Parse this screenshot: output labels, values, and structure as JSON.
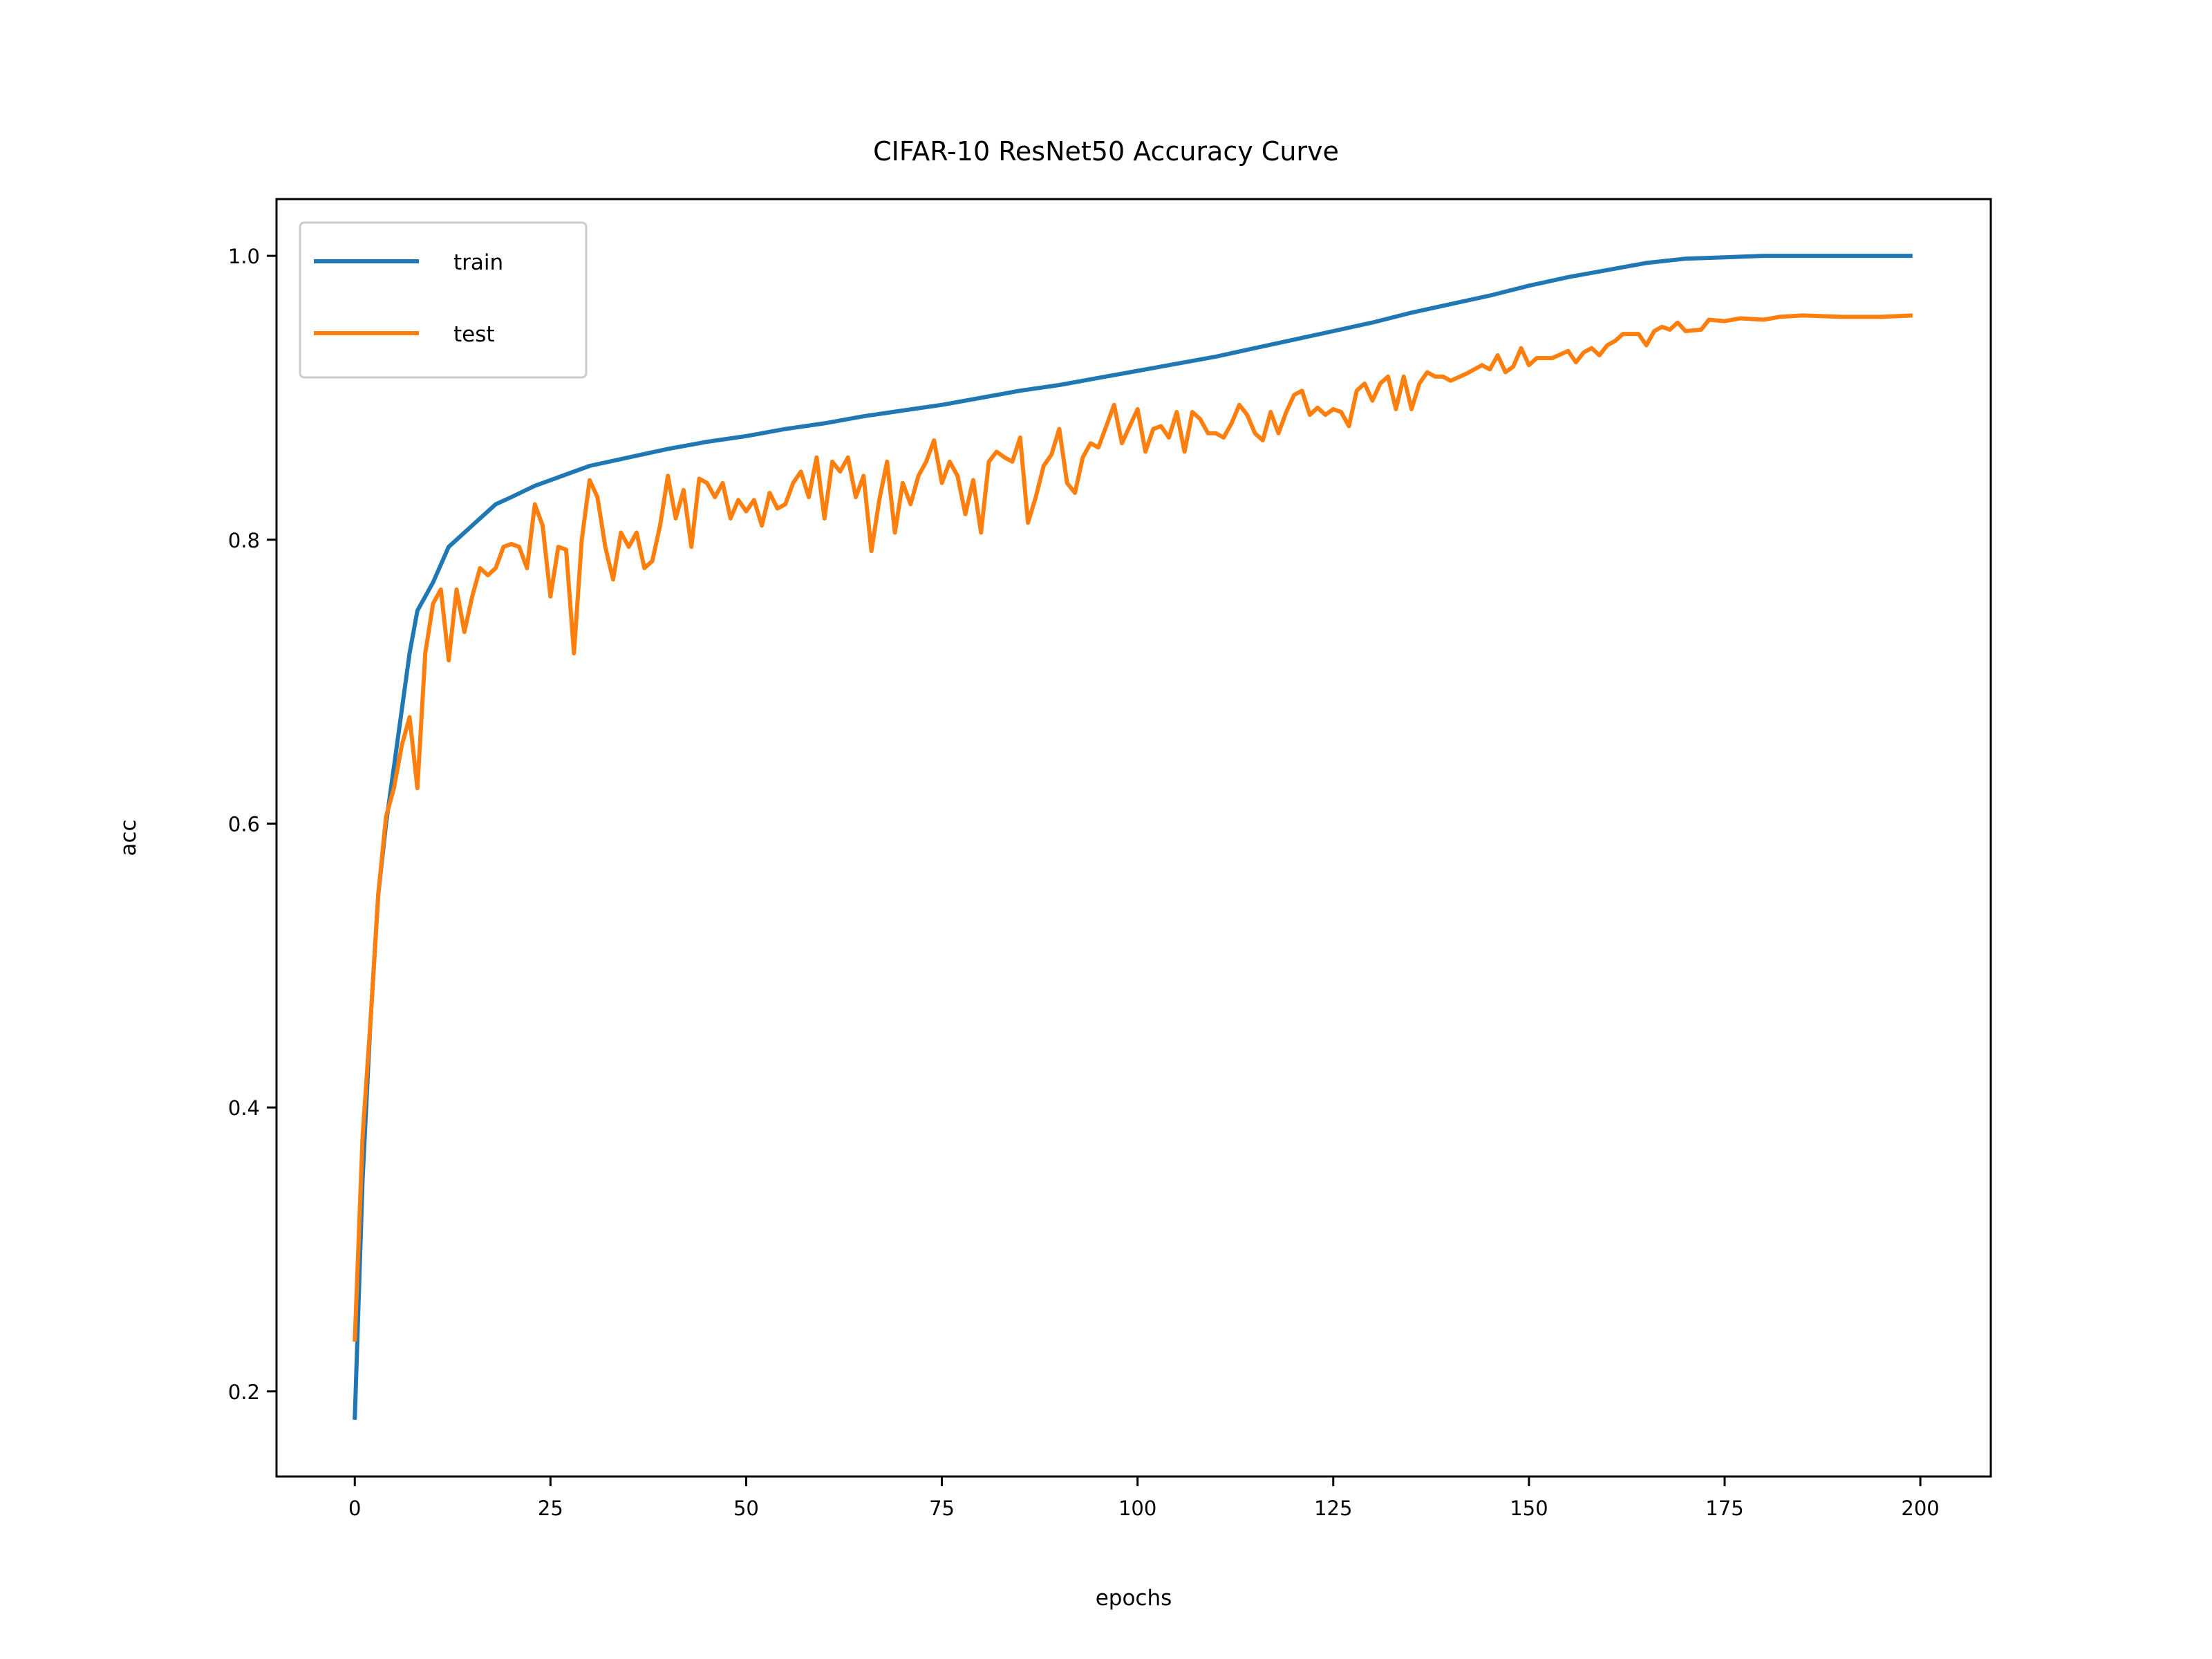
{
  "chart_data": {
    "type": "line",
    "title": "CIFAR-10 ResNet50 Accuracy Curve",
    "xlabel": "epochs",
    "ylabel": "acc",
    "xlim": [
      -10,
      209
    ],
    "ylim": [
      0.14,
      1.04
    ],
    "xticks": [
      0,
      25,
      50,
      75,
      100,
      125,
      150,
      175,
      200
    ],
    "yticks": [
      0.2,
      0.4,
      0.6,
      0.8,
      1.0
    ],
    "xtick_labels": [
      "0",
      "25",
      "50",
      "75",
      "100",
      "125",
      "150",
      "175",
      "200"
    ],
    "ytick_labels": [
      "0.2",
      "0.4",
      "0.6",
      "0.8",
      "1.0"
    ],
    "grid": false,
    "legend_position": "upper-left",
    "series": [
      {
        "name": "train",
        "color": "#1f77b4",
        "points": [
          [
            0,
            0.18
          ],
          [
            1,
            0.35
          ],
          [
            2,
            0.46
          ],
          [
            3,
            0.55
          ],
          [
            4,
            0.6
          ],
          [
            5,
            0.64
          ],
          [
            6,
            0.68
          ],
          [
            7,
            0.72
          ],
          [
            8,
            0.75
          ],
          [
            10,
            0.77
          ],
          [
            12,
            0.795
          ],
          [
            14,
            0.805
          ],
          [
            16,
            0.815
          ],
          [
            18,
            0.825
          ],
          [
            20,
            0.83
          ],
          [
            23,
            0.838
          ],
          [
            26,
            0.844
          ],
          [
            30,
            0.852
          ],
          [
            35,
            0.858
          ],
          [
            40,
            0.864
          ],
          [
            45,
            0.869
          ],
          [
            50,
            0.873
          ],
          [
            55,
            0.878
          ],
          [
            60,
            0.882
          ],
          [
            65,
            0.887
          ],
          [
            70,
            0.891
          ],
          [
            75,
            0.895
          ],
          [
            80,
            0.9
          ],
          [
            85,
            0.905
          ],
          [
            90,
            0.909
          ],
          [
            95,
            0.914
          ],
          [
            100,
            0.919
          ],
          [
            105,
            0.924
          ],
          [
            110,
            0.929
          ],
          [
            115,
            0.935
          ],
          [
            120,
            0.941
          ],
          [
            125,
            0.947
          ],
          [
            130,
            0.953
          ],
          [
            135,
            0.96
          ],
          [
            140,
            0.966
          ],
          [
            145,
            0.972
          ],
          [
            150,
            0.979
          ],
          [
            155,
            0.985
          ],
          [
            160,
            0.99
          ],
          [
            165,
            0.995
          ],
          [
            170,
            0.998
          ],
          [
            175,
            0.999
          ],
          [
            180,
            1.0
          ],
          [
            190,
            1.0
          ],
          [
            199,
            1.0
          ]
        ]
      },
      {
        "name": "test",
        "color": "#ff7f0e",
        "points": [
          [
            0,
            0.235
          ],
          [
            1,
            0.38
          ],
          [
            2,
            0.46
          ],
          [
            3,
            0.55
          ],
          [
            4,
            0.605
          ],
          [
            5,
            0.625
          ],
          [
            6,
            0.655
          ],
          [
            7,
            0.675
          ],
          [
            8,
            0.625
          ],
          [
            9,
            0.72
          ],
          [
            10,
            0.755
          ],
          [
            11,
            0.765
          ],
          [
            12,
            0.715
          ],
          [
            13,
            0.765
          ],
          [
            14,
            0.735
          ],
          [
            15,
            0.76
          ],
          [
            16,
            0.78
          ],
          [
            17,
            0.775
          ],
          [
            18,
            0.78
          ],
          [
            19,
            0.795
          ],
          [
            20,
            0.797
          ],
          [
            21,
            0.795
          ],
          [
            22,
            0.78
          ],
          [
            23,
            0.825
          ],
          [
            24,
            0.81
          ],
          [
            25,
            0.76
          ],
          [
            26,
            0.795
          ],
          [
            27,
            0.793
          ],
          [
            28,
            0.72
          ],
          [
            29,
            0.8
          ],
          [
            30,
            0.842
          ],
          [
            31,
            0.83
          ],
          [
            32,
            0.795
          ],
          [
            33,
            0.772
          ],
          [
            34,
            0.805
          ],
          [
            35,
            0.795
          ],
          [
            36,
            0.805
          ],
          [
            37,
            0.78
          ],
          [
            38,
            0.785
          ],
          [
            39,
            0.81
          ],
          [
            40,
            0.845
          ],
          [
            41,
            0.815
          ],
          [
            42,
            0.835
          ],
          [
            43,
            0.795
          ],
          [
            44,
            0.843
          ],
          [
            45,
            0.84
          ],
          [
            46,
            0.83
          ],
          [
            47,
            0.84
          ],
          [
            48,
            0.815
          ],
          [
            49,
            0.828
          ],
          [
            50,
            0.82
          ],
          [
            51,
            0.828
          ],
          [
            52,
            0.81
          ],
          [
            53,
            0.833
          ],
          [
            54,
            0.822
          ],
          [
            55,
            0.825
          ],
          [
            56,
            0.84
          ],
          [
            57,
            0.848
          ],
          [
            58,
            0.83
          ],
          [
            59,
            0.858
          ],
          [
            60,
            0.815
          ],
          [
            61,
            0.855
          ],
          [
            62,
            0.848
          ],
          [
            63,
            0.858
          ],
          [
            64,
            0.83
          ],
          [
            65,
            0.845
          ],
          [
            66,
            0.792
          ],
          [
            67,
            0.828
          ],
          [
            68,
            0.855
          ],
          [
            69,
            0.805
          ],
          [
            70,
            0.84
          ],
          [
            71,
            0.825
          ],
          [
            72,
            0.845
          ],
          [
            73,
            0.855
          ],
          [
            74,
            0.87
          ],
          [
            75,
            0.84
          ],
          [
            76,
            0.855
          ],
          [
            77,
            0.845
          ],
          [
            78,
            0.818
          ],
          [
            79,
            0.842
          ],
          [
            80,
            0.805
          ],
          [
            81,
            0.855
          ],
          [
            82,
            0.862
          ],
          [
            83,
            0.858
          ],
          [
            84,
            0.855
          ],
          [
            85,
            0.872
          ],
          [
            86,
            0.812
          ],
          [
            87,
            0.83
          ],
          [
            88,
            0.852
          ],
          [
            89,
            0.86
          ],
          [
            90,
            0.878
          ],
          [
            91,
            0.84
          ],
          [
            92,
            0.833
          ],
          [
            93,
            0.858
          ],
          [
            94,
            0.868
          ],
          [
            95,
            0.865
          ],
          [
            96,
            0.88
          ],
          [
            97,
            0.895
          ],
          [
            98,
            0.868
          ],
          [
            99,
            0.88
          ],
          [
            100,
            0.892
          ],
          [
            101,
            0.862
          ],
          [
            102,
            0.878
          ],
          [
            103,
            0.88
          ],
          [
            104,
            0.872
          ],
          [
            105,
            0.89
          ],
          [
            106,
            0.862
          ],
          [
            107,
            0.89
          ],
          [
            108,
            0.885
          ],
          [
            109,
            0.875
          ],
          [
            110,
            0.875
          ],
          [
            111,
            0.872
          ],
          [
            112,
            0.882
          ],
          [
            113,
            0.895
          ],
          [
            114,
            0.888
          ],
          [
            115,
            0.875
          ],
          [
            116,
            0.87
          ],
          [
            117,
            0.89
          ],
          [
            118,
            0.875
          ],
          [
            119,
            0.89
          ],
          [
            120,
            0.902
          ],
          [
            121,
            0.905
          ],
          [
            122,
            0.888
          ],
          [
            123,
            0.893
          ],
          [
            124,
            0.888
          ],
          [
            125,
            0.892
          ],
          [
            126,
            0.89
          ],
          [
            127,
            0.88
          ],
          [
            128,
            0.905
          ],
          [
            129,
            0.91
          ],
          [
            130,
            0.898
          ],
          [
            131,
            0.91
          ],
          [
            132,
            0.915
          ],
          [
            133,
            0.892
          ],
          [
            134,
            0.915
          ],
          [
            135,
            0.892
          ],
          [
            136,
            0.91
          ],
          [
            137,
            0.918
          ],
          [
            138,
            0.915
          ],
          [
            139,
            0.915
          ],
          [
            140,
            0.912
          ],
          [
            142,
            0.917
          ],
          [
            144,
            0.923
          ],
          [
            145,
            0.92
          ],
          [
            146,
            0.93
          ],
          [
            147,
            0.918
          ],
          [
            148,
            0.922
          ],
          [
            149,
            0.935
          ],
          [
            150,
            0.923
          ],
          [
            151,
            0.928
          ],
          [
            153,
            0.928
          ],
          [
            155,
            0.933
          ],
          [
            156,
            0.925
          ],
          [
            157,
            0.932
          ],
          [
            158,
            0.935
          ],
          [
            159,
            0.93
          ],
          [
            160,
            0.937
          ],
          [
            161,
            0.94
          ],
          [
            162,
            0.945
          ],
          [
            164,
            0.945
          ],
          [
            165,
            0.937
          ],
          [
            166,
            0.947
          ],
          [
            167,
            0.95
          ],
          [
            168,
            0.948
          ],
          [
            169,
            0.953
          ],
          [
            170,
            0.947
          ],
          [
            172,
            0.948
          ],
          [
            173,
            0.955
          ],
          [
            175,
            0.954
          ],
          [
            177,
            0.956
          ],
          [
            180,
            0.955
          ],
          [
            182,
            0.957
          ],
          [
            185,
            0.958
          ],
          [
            190,
            0.957
          ],
          [
            195,
            0.957
          ],
          [
            199,
            0.958
          ]
        ]
      }
    ]
  }
}
